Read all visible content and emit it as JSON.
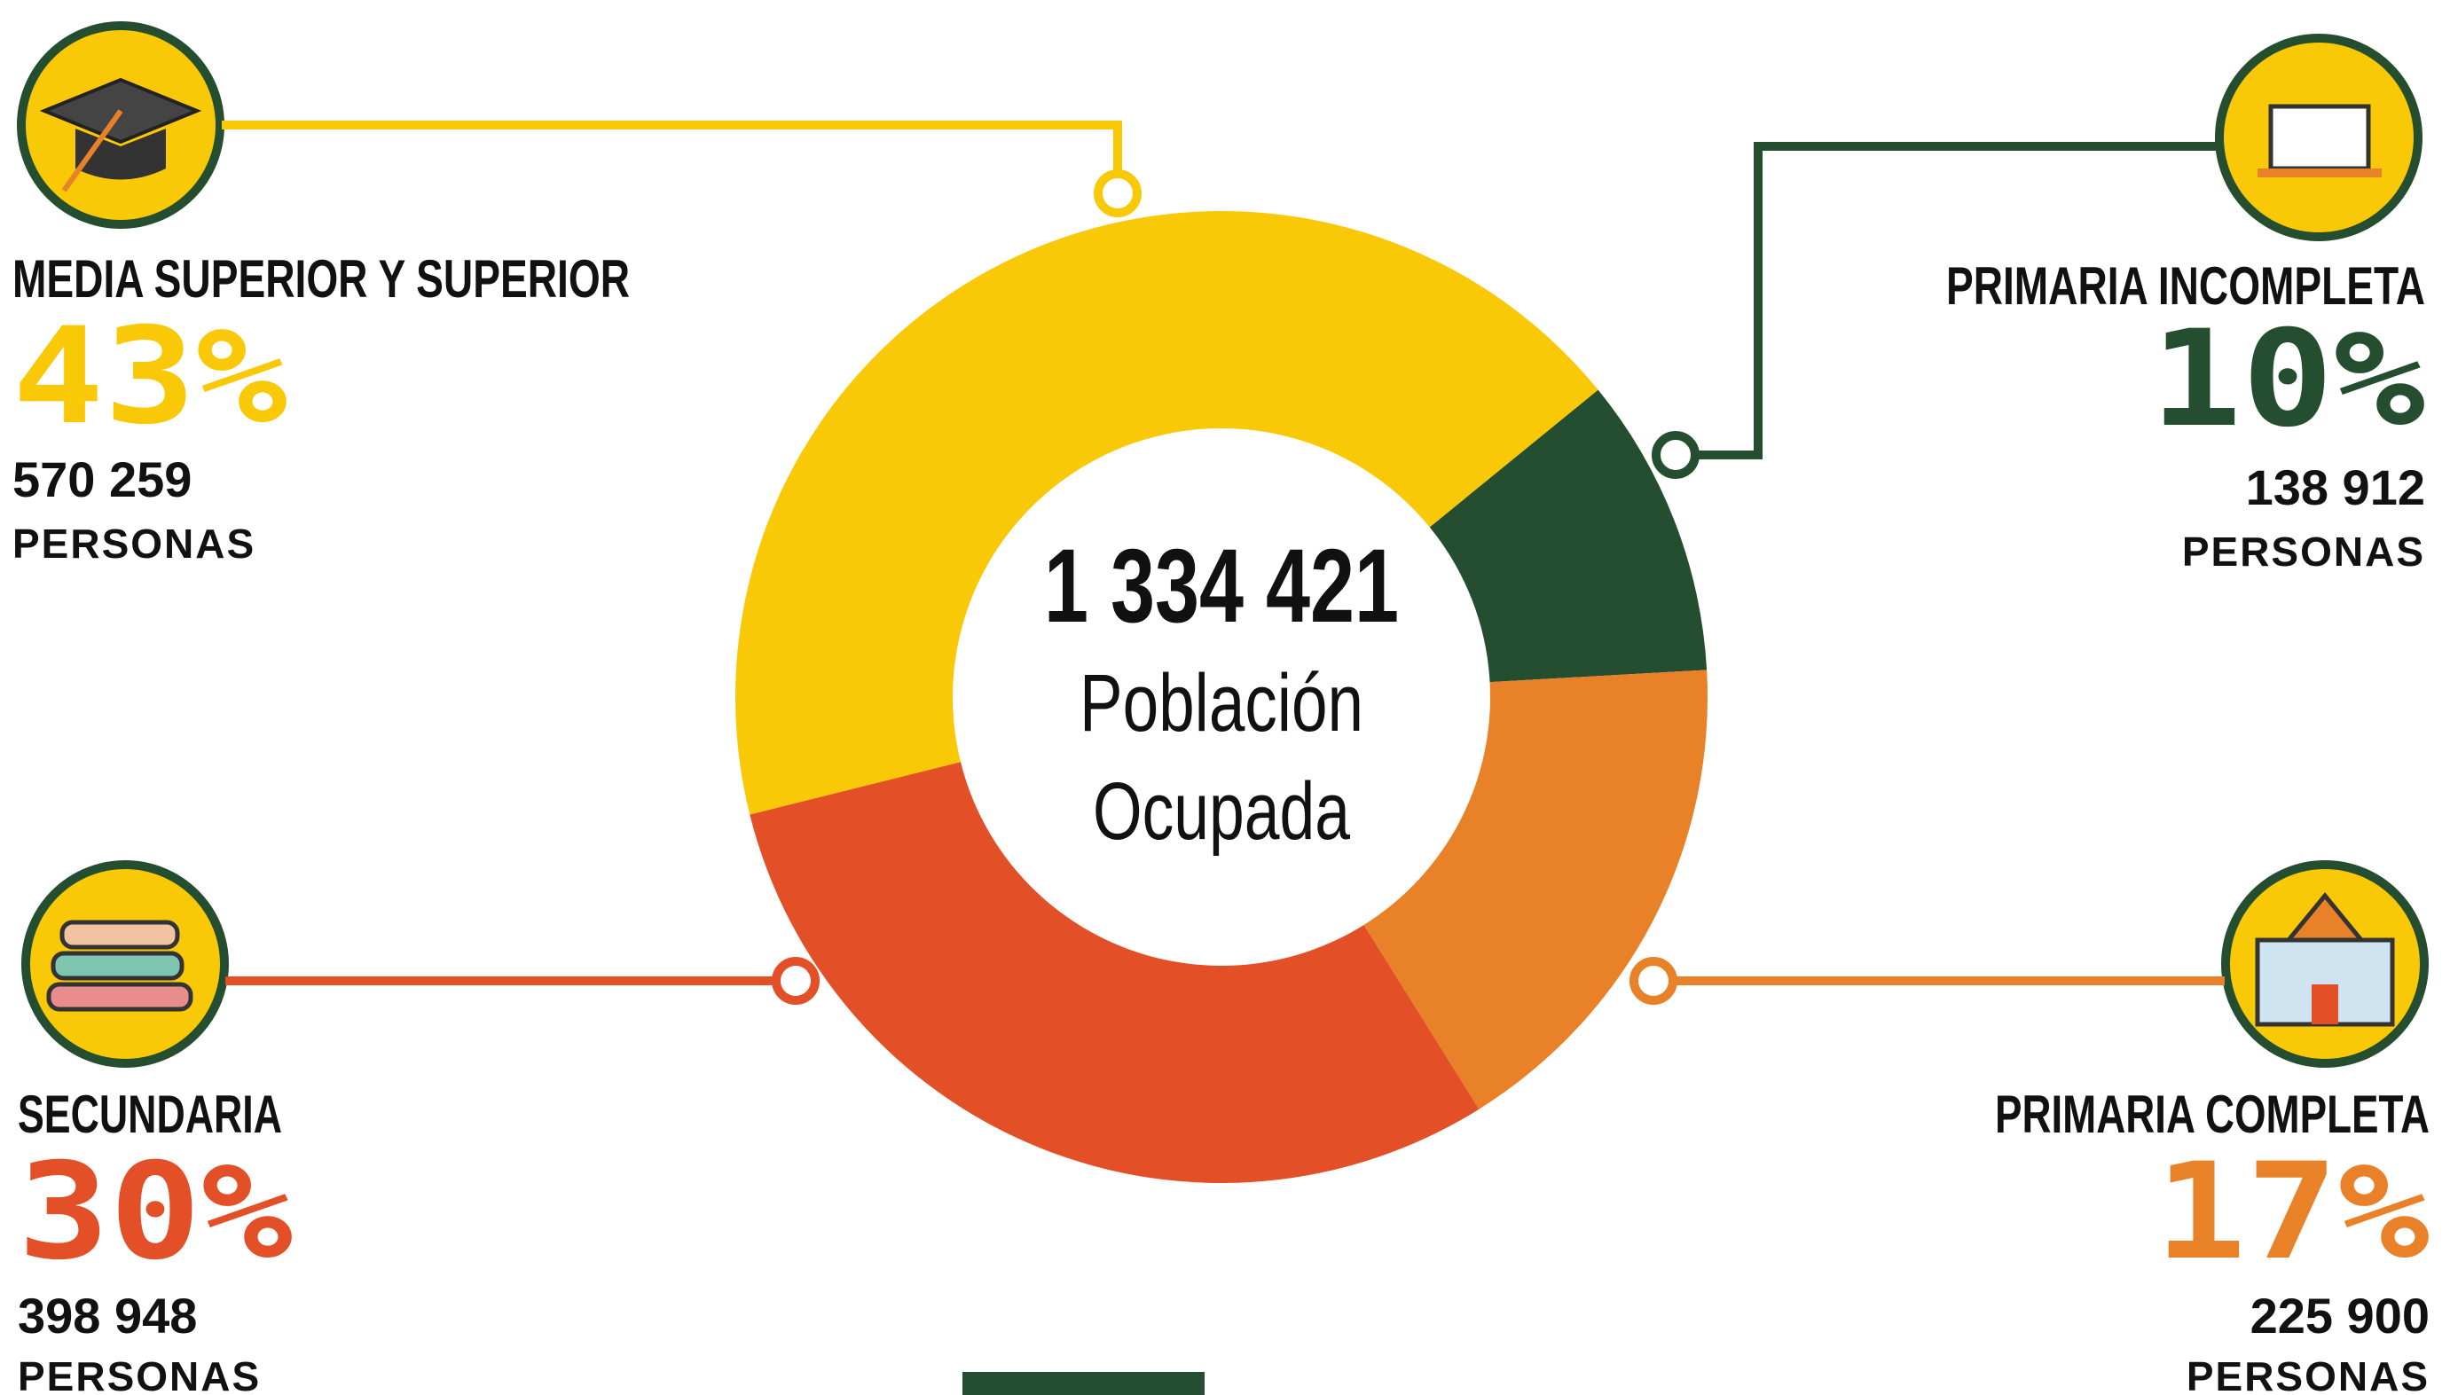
{
  "chart_data": {
    "type": "donut",
    "categories": [
      "MEDIA SUPERIOR Y SUPERIOR",
      "PRIMARIA INCOMPLETA",
      "PRIMARIA COMPLETA",
      "SECUNDARIA"
    ],
    "values": [
      43,
      10,
      17,
      30
    ],
    "value_labels": [
      "43%",
      "10%",
      "17%",
      "30%"
    ],
    "persons": [
      "570 259",
      "138 912",
      "225 900",
      "398 948"
    ],
    "persons_unit": "PERSONAS",
    "colors": [
      "#f9c806",
      "#244e2f",
      "#e88127",
      "#e34f27"
    ],
    "center_total": "1 334 421",
    "center_label": [
      "Población",
      "Ocupada"
    ]
  }
}
